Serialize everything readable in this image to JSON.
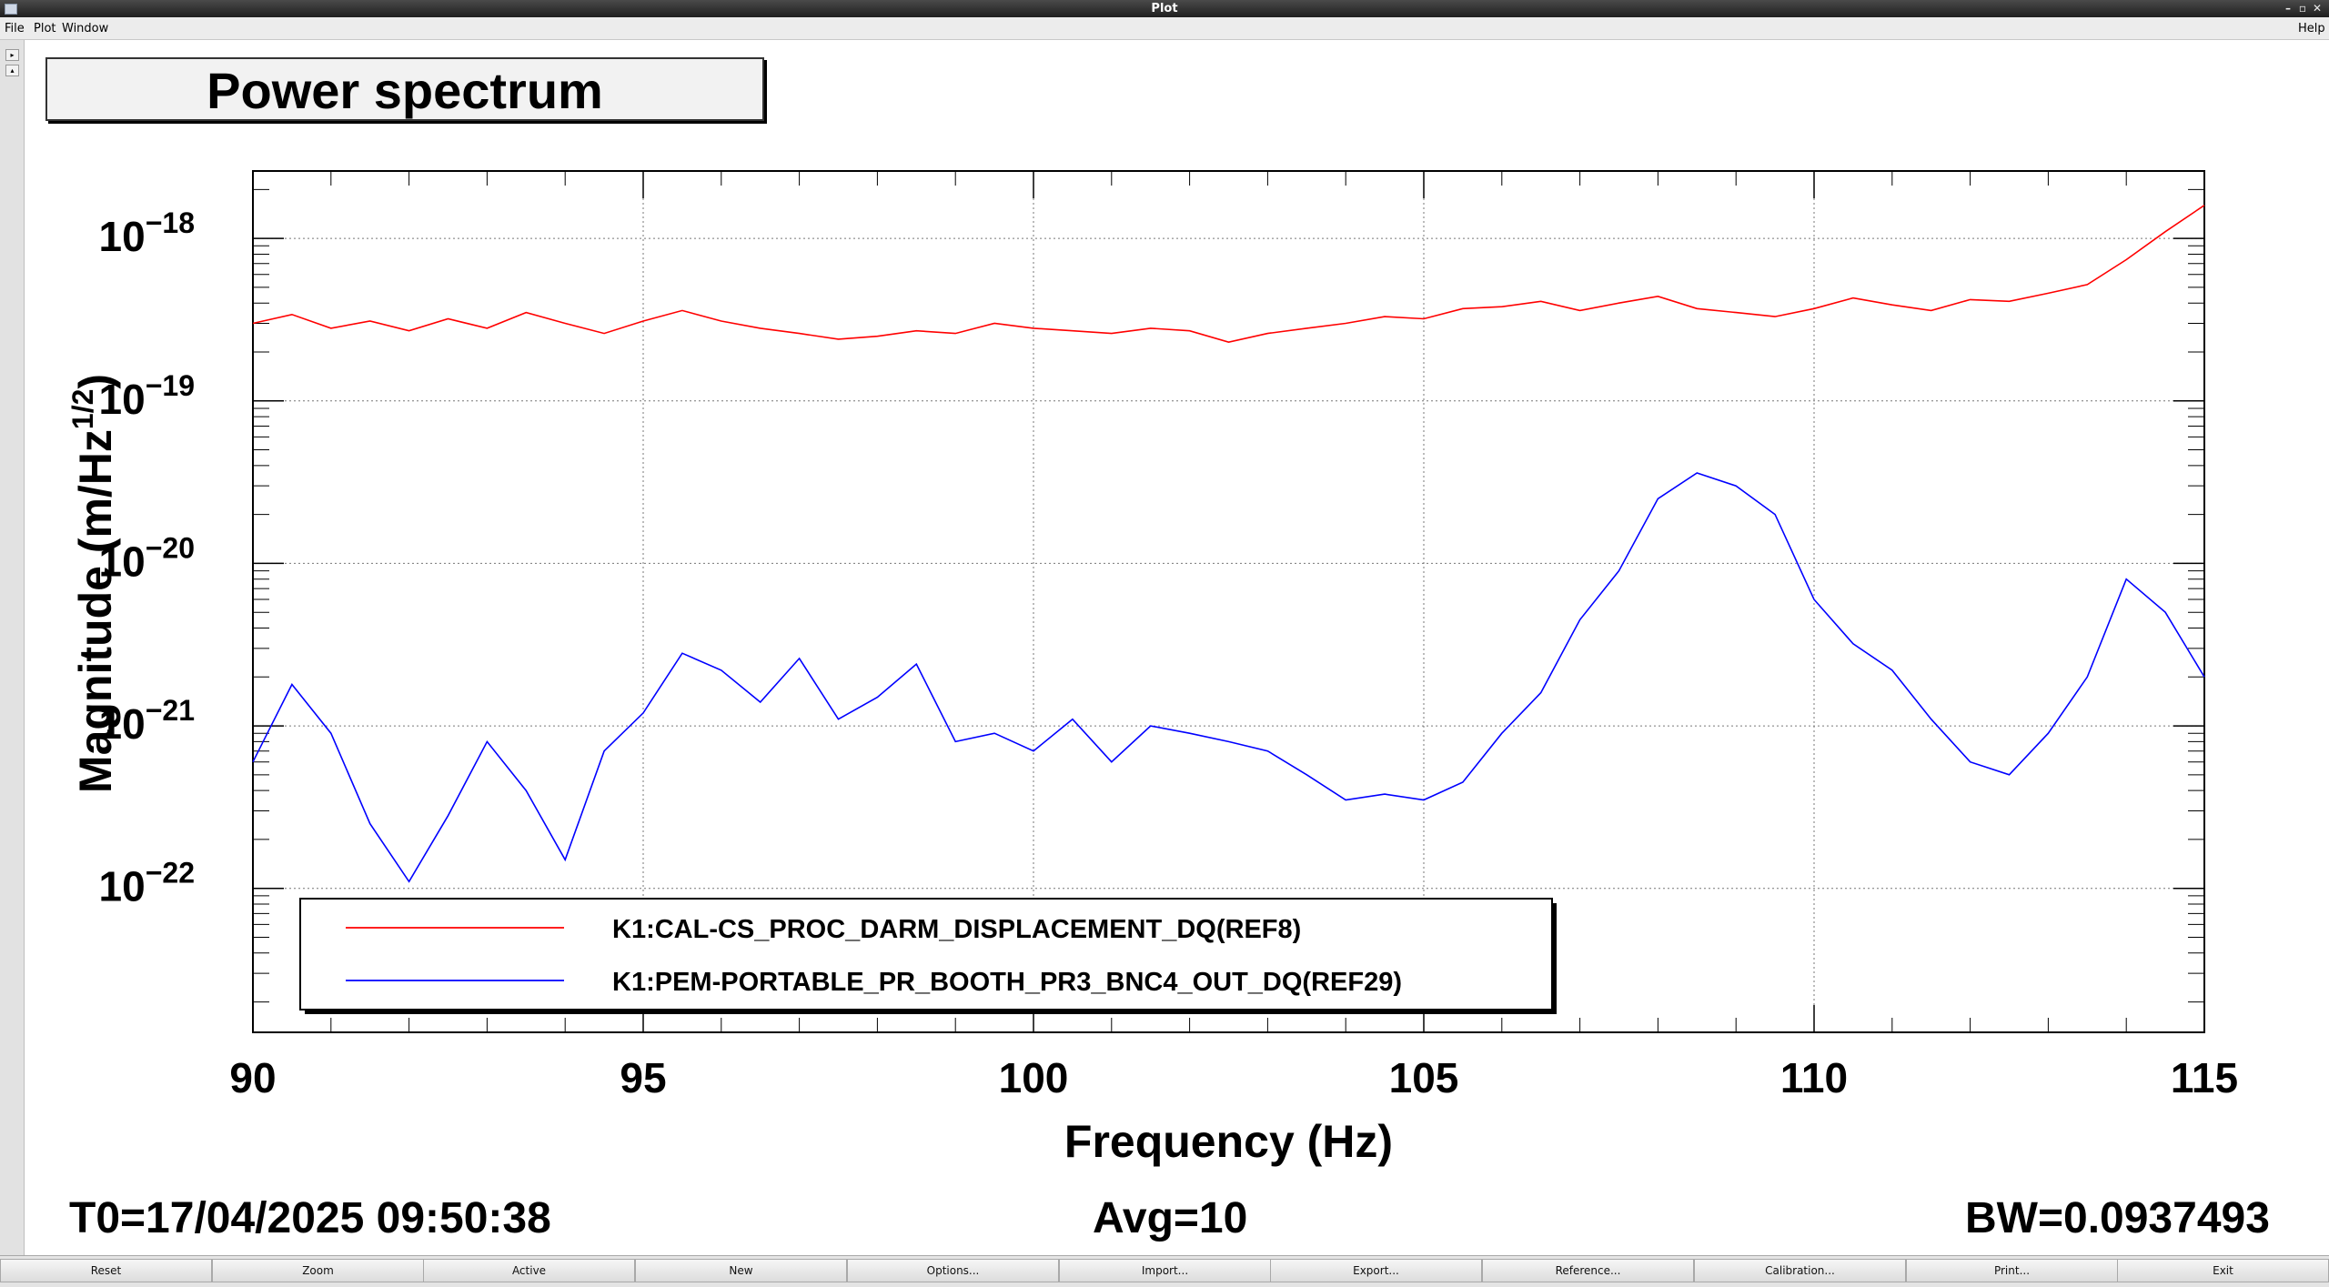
{
  "window": {
    "title": "Plot"
  },
  "menu": {
    "file": "File",
    "plot": "Plot",
    "window": "Window",
    "help": "Help"
  },
  "plot_title": "Power spectrum",
  "footer": {
    "t0": "T0=17/04/2025 09:50:38",
    "avg": "Avg=10",
    "bw": "BW=0.0937493"
  },
  "buttons": [
    "Reset",
    "Zoom",
    "Active",
    "New",
    "Options...",
    "Import...",
    "Export...",
    "Reference...",
    "Calibration...",
    "Print...",
    "Exit"
  ],
  "chart_data": {
    "type": "line",
    "title": "Power spectrum",
    "xlabel": "Frequency (Hz)",
    "ylabel": "Magnitude (m/Hz",
    "ylabel_sup": "1/2",
    "ylabel_close": ")",
    "xlim": [
      90,
      115
    ],
    "xscale": "linear",
    "x_ticks": [
      90,
      95,
      100,
      105,
      110,
      115
    ],
    "yscale": "log",
    "ylim": [
      1.3e-23,
      2.6e-18
    ],
    "y_ticks": [
      {
        "base": "10",
        "exp": "−18",
        "value": 1e-18
      },
      {
        "base": "10",
        "exp": "−19",
        "value": 1e-19
      },
      {
        "base": "10",
        "exp": "−20",
        "value": 1e-20
      },
      {
        "base": "10",
        "exp": "−21",
        "value": 1e-21
      },
      {
        "base": "10",
        "exp": "−22",
        "value": 1e-22
      }
    ],
    "grid": true,
    "legend_position": "bottom-left",
    "series": [
      {
        "name": "K1:CAL-CS_PROC_DARM_DISPLACEMENT_DQ(REF8)",
        "color": "#ff0000",
        "x": [
          90,
          90.5,
          91,
          91.5,
          92,
          92.5,
          93,
          93.5,
          94,
          94.5,
          95,
          95.5,
          96,
          96.5,
          97,
          97.5,
          98,
          98.5,
          99,
          99.5,
          100,
          100.5,
          101,
          101.5,
          102,
          102.5,
          103,
          103.5,
          104,
          104.5,
          105,
          105.5,
          106,
          106.5,
          107,
          107.5,
          108,
          108.5,
          109,
          109.5,
          110,
          110.5,
          111,
          111.5,
          112,
          112.5,
          113,
          113.5,
          114,
          114.5,
          115
        ],
        "y": [
          3e-19,
          3.4e-19,
          2.8e-19,
          3.1e-19,
          2.7e-19,
          3.2e-19,
          2.8e-19,
          3.5e-19,
          3e-19,
          2.6e-19,
          3.1e-19,
          3.6e-19,
          3.1e-19,
          2.8e-19,
          2.6e-19,
          2.4e-19,
          2.5e-19,
          2.7e-19,
          2.6e-19,
          3e-19,
          2.8e-19,
          2.7e-19,
          2.6e-19,
          2.8e-19,
          2.7e-19,
          2.3e-19,
          2.6e-19,
          2.8e-19,
          3e-19,
          3.3e-19,
          3.2e-19,
          3.7e-19,
          3.8e-19,
          4.1e-19,
          3.6e-19,
          4e-19,
          4.4e-19,
          3.7e-19,
          3.5e-19,
          3.3e-19,
          3.7e-19,
          4.3e-19,
          3.9e-19,
          3.6e-19,
          4.2e-19,
          4.1e-19,
          4.6e-19,
          5.2e-19,
          7.4e-19,
          1.1e-18,
          1.6e-18
        ]
      },
      {
        "name": "K1:PEM-PORTABLE_PR_BOOTH_PR3_BNC4_OUT_DQ(REF29)",
        "color": "#0000ff",
        "x": [
          90,
          90.5,
          91,
          91.5,
          92,
          92.5,
          93,
          93.5,
          94,
          94.5,
          95,
          95.5,
          96,
          96.5,
          97,
          97.5,
          98,
          98.5,
          99,
          99.5,
          100,
          100.5,
          101,
          101.5,
          102,
          102.5,
          103,
          103.5,
          104,
          104.5,
          105,
          105.5,
          106,
          106.5,
          107,
          107.5,
          108,
          108.5,
          109,
          109.5,
          110,
          110.5,
          111,
          111.5,
          112,
          112.5,
          113,
          113.5,
          114,
          114.5,
          115
        ],
        "y": [
          6e-22,
          1.8e-21,
          9e-22,
          2.5e-22,
          1.1e-22,
          2.8e-22,
          8e-22,
          4e-22,
          1.5e-22,
          7e-22,
          1.2e-21,
          2.8e-21,
          2.2e-21,
          1.4e-21,
          2.6e-21,
          1.1e-21,
          1.5e-21,
          2.4e-21,
          8e-22,
          9e-22,
          7e-22,
          1.1e-21,
          6e-22,
          1e-21,
          9e-22,
          8e-22,
          7e-22,
          5e-22,
          3.5e-22,
          3.8e-22,
          3.5e-22,
          4.5e-22,
          9e-22,
          1.6e-21,
          4.5e-21,
          9e-21,
          2.5e-20,
          3.6e-20,
          3e-20,
          2e-20,
          6e-21,
          3.2e-21,
          2.2e-21,
          1.1e-21,
          6e-22,
          5e-22,
          9e-22,
          2e-21,
          8e-21,
          5e-21,
          2e-21
        ]
      }
    ]
  }
}
